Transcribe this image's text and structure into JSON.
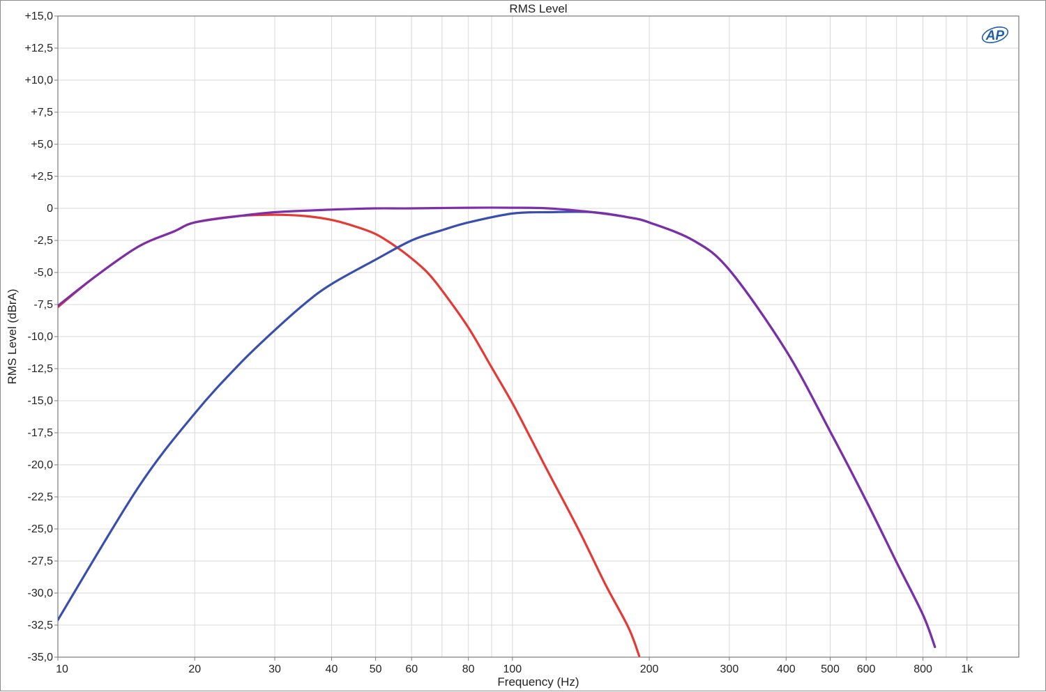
{
  "chart_data": {
    "type": "line",
    "title": "RMS Level",
    "xlabel": "Frequency (Hz)",
    "ylabel": "RMS Level (dBrA)",
    "x_scale": "log",
    "xlim": [
      10,
      1300
    ],
    "ylim": [
      -35,
      15
    ],
    "grid": true,
    "x_ticks": [
      {
        "value": 10,
        "label": "10"
      },
      {
        "value": 20,
        "label": "20"
      },
      {
        "value": 30,
        "label": "30"
      },
      {
        "value": 40,
        "label": "40"
      },
      {
        "value": 50,
        "label": "50"
      },
      {
        "value": 60,
        "label": "60"
      },
      {
        "value": 80,
        "label": "80"
      },
      {
        "value": 100,
        "label": "100"
      },
      {
        "value": 200,
        "label": "200"
      },
      {
        "value": 300,
        "label": "300"
      },
      {
        "value": 400,
        "label": "400"
      },
      {
        "value": 500,
        "label": "500"
      },
      {
        "value": 600,
        "label": "600"
      },
      {
        "value": 800,
        "label": "800"
      },
      {
        "value": 1000,
        "label": "1k"
      }
    ],
    "x_minor_grid": [
      70,
      90,
      700,
      900
    ],
    "y_ticks": [
      {
        "value": 15,
        "label": "+15,0"
      },
      {
        "value": 12.5,
        "label": "+12,5"
      },
      {
        "value": 10,
        "label": "+10,0"
      },
      {
        "value": 7.5,
        "label": "+7,5"
      },
      {
        "value": 5,
        "label": "+5,0"
      },
      {
        "value": 2.5,
        "label": "+2,5"
      },
      {
        "value": 0,
        "label": "0"
      },
      {
        "value": -2.5,
        "label": "-2,5"
      },
      {
        "value": -5,
        "label": "-5,0"
      },
      {
        "value": -7.5,
        "label": "-7,5"
      },
      {
        "value": -10,
        "label": "-10,0"
      },
      {
        "value": -12.5,
        "label": "-12,5"
      },
      {
        "value": -15,
        "label": "-15,0"
      },
      {
        "value": -17.5,
        "label": "-17,5"
      },
      {
        "value": -20,
        "label": "-20,0"
      },
      {
        "value": -22.5,
        "label": "-22,5"
      },
      {
        "value": -25,
        "label": "-25,0"
      },
      {
        "value": -27.5,
        "label": "-27,5"
      },
      {
        "value": -30,
        "label": "-30,0"
      },
      {
        "value": -32.5,
        "label": "-32,5"
      },
      {
        "value": -35,
        "label": "-35,0"
      }
    ],
    "series": [
      {
        "color": "#e53935",
        "x": [
          10,
          12,
          15,
          18,
          20,
          25,
          30,
          35,
          40,
          45,
          50,
          55,
          60,
          65,
          70,
          80,
          90,
          100,
          110,
          120,
          140,
          160,
          180,
          190
        ],
        "y": [
          -7.7,
          -5.4,
          -3.0,
          -1.8,
          -1.1,
          -0.6,
          -0.5,
          -0.6,
          -0.9,
          -1.4,
          -2.0,
          -2.9,
          -3.9,
          -5.0,
          -6.4,
          -9.3,
          -12.4,
          -15.2,
          -18.0,
          -20.6,
          -25.1,
          -29.3,
          -32.7,
          -34.9
        ]
      },
      {
        "color": "#3a4fad",
        "x": [
          10,
          15,
          20,
          25,
          30,
          35,
          40,
          50,
          60,
          70,
          80,
          100,
          120,
          150,
          180,
          200,
          250,
          300,
          400,
          500,
          600,
          700,
          800,
          850
        ],
        "y": [
          -32.1,
          -21.8,
          -16.0,
          -12.2,
          -9.5,
          -7.4,
          -5.9,
          -4.0,
          -2.5,
          -1.7,
          -1.1,
          -0.4,
          -0.3,
          -0.3,
          -0.7,
          -1.1,
          -2.5,
          -4.8,
          -11.1,
          -17.4,
          -22.8,
          -27.6,
          -31.7,
          -34.2
        ]
      },
      {
        "color": "#7b2fa8",
        "x": [
          10,
          12,
          15,
          18,
          20,
          25,
          30,
          40,
          50,
          60,
          80,
          100,
          120,
          150,
          180,
          200,
          250,
          300,
          400,
          500,
          600,
          700,
          800,
          850
        ],
        "y": [
          -7.6,
          -5.4,
          -3.0,
          -1.8,
          -1.1,
          -0.6,
          -0.3,
          -0.1,
          0.0,
          0.0,
          0.05,
          0.05,
          0.0,
          -0.3,
          -0.7,
          -1.1,
          -2.5,
          -4.8,
          -11.1,
          -17.4,
          -22.8,
          -27.6,
          -31.7,
          -34.2
        ]
      }
    ]
  },
  "logo": {
    "text": "AP"
  },
  "colors": {
    "grid": "#d8d8d8",
    "axis": "#7a7a7a",
    "red": "#e53935",
    "blue": "#3a4fad",
    "purple": "#7b2fa8"
  }
}
